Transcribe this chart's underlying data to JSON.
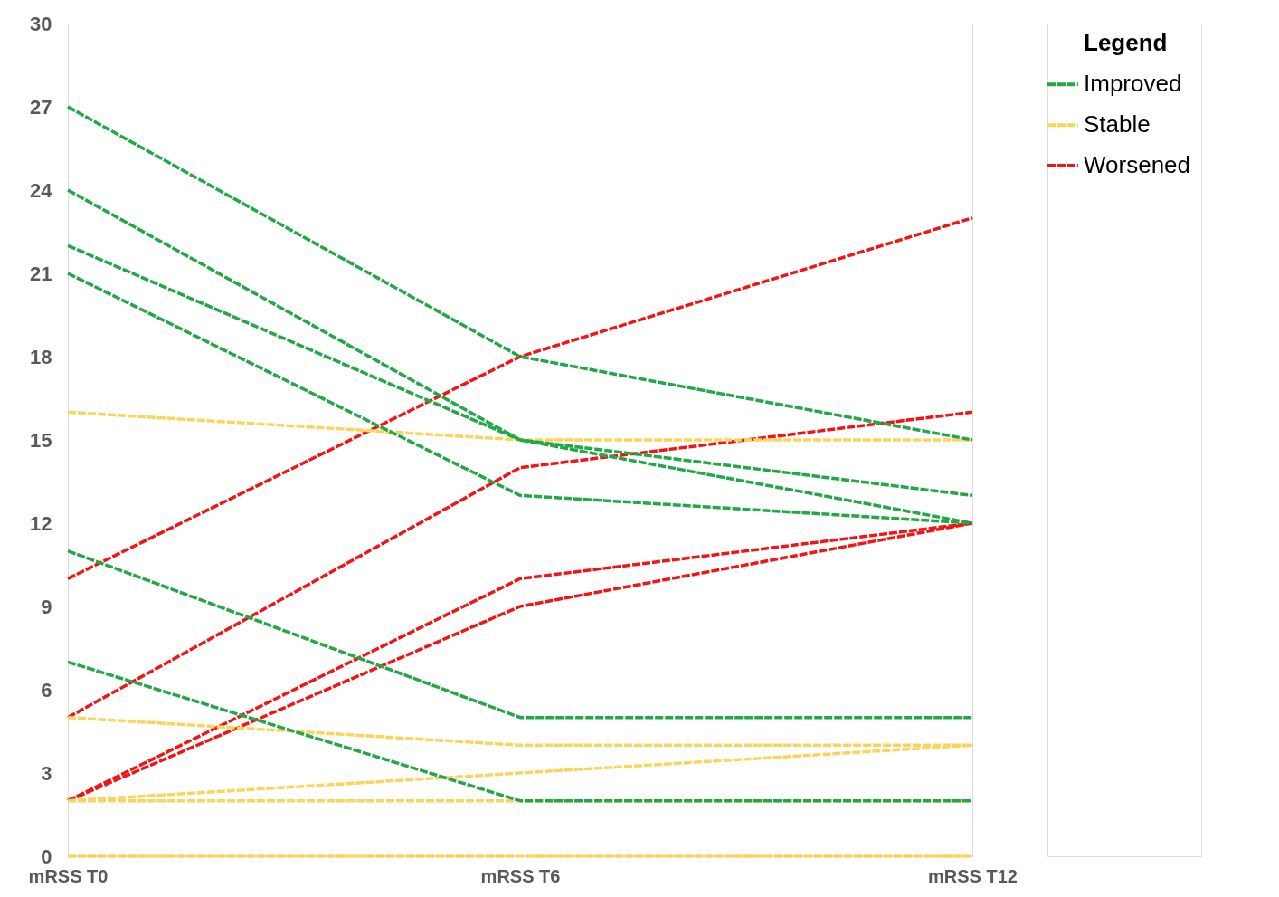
{
  "chart_data": {
    "type": "line",
    "categories": [
      "mRSS T0",
      "mRSS T6",
      "mRSS T12"
    ],
    "ylim": [
      0,
      30
    ],
    "yticks": [
      0,
      3,
      6,
      9,
      12,
      15,
      18,
      21,
      24,
      27,
      30
    ],
    "grid": false,
    "legend": "top right",
    "legend_title": "Legend",
    "marker": "none",
    "line_style": "dashed",
    "series": [
      {
        "name": "Improved",
        "color": "#22a846",
        "values": [
          27,
          18,
          15
        ]
      },
      {
        "color": "#22a846",
        "values": [
          24,
          15,
          12
        ]
      },
      {
        "color": "#22a846",
        "values": [
          22,
          15,
          13
        ]
      },
      {
        "color": "#22a846",
        "values": [
          21,
          13,
          12
        ]
      },
      {
        "color": "#22a846",
        "values": [
          11,
          5,
          5
        ]
      },
      {
        "color": "#22a846",
        "values": [
          7,
          2,
          2
        ]
      },
      {
        "name": "Stable",
        "color": "#fad55c",
        "values": [
          16,
          15,
          15
        ]
      },
      {
        "color": "#fad55c",
        "values": [
          5,
          4,
          4
        ]
      },
      {
        "color": "#fad55c",
        "values": [
          2,
          3,
          4
        ]
      },
      {
        "color": "#fad55c",
        "values": [
          2,
          2,
          2
        ]
      },
      {
        "color": "#fad55c",
        "values": [
          0,
          0,
          0
        ]
      },
      {
        "name": "Worsened",
        "color": "#f01616",
        "values": [
          10,
          18,
          23
        ]
      },
      {
        "color": "#f01616",
        "values": [
          5,
          14,
          16
        ]
      },
      {
        "color": "#f01616",
        "values": [
          2,
          10,
          12
        ]
      },
      {
        "color": "#f01616",
        "values": [
          2,
          9,
          12
        ]
      }
    ]
  }
}
